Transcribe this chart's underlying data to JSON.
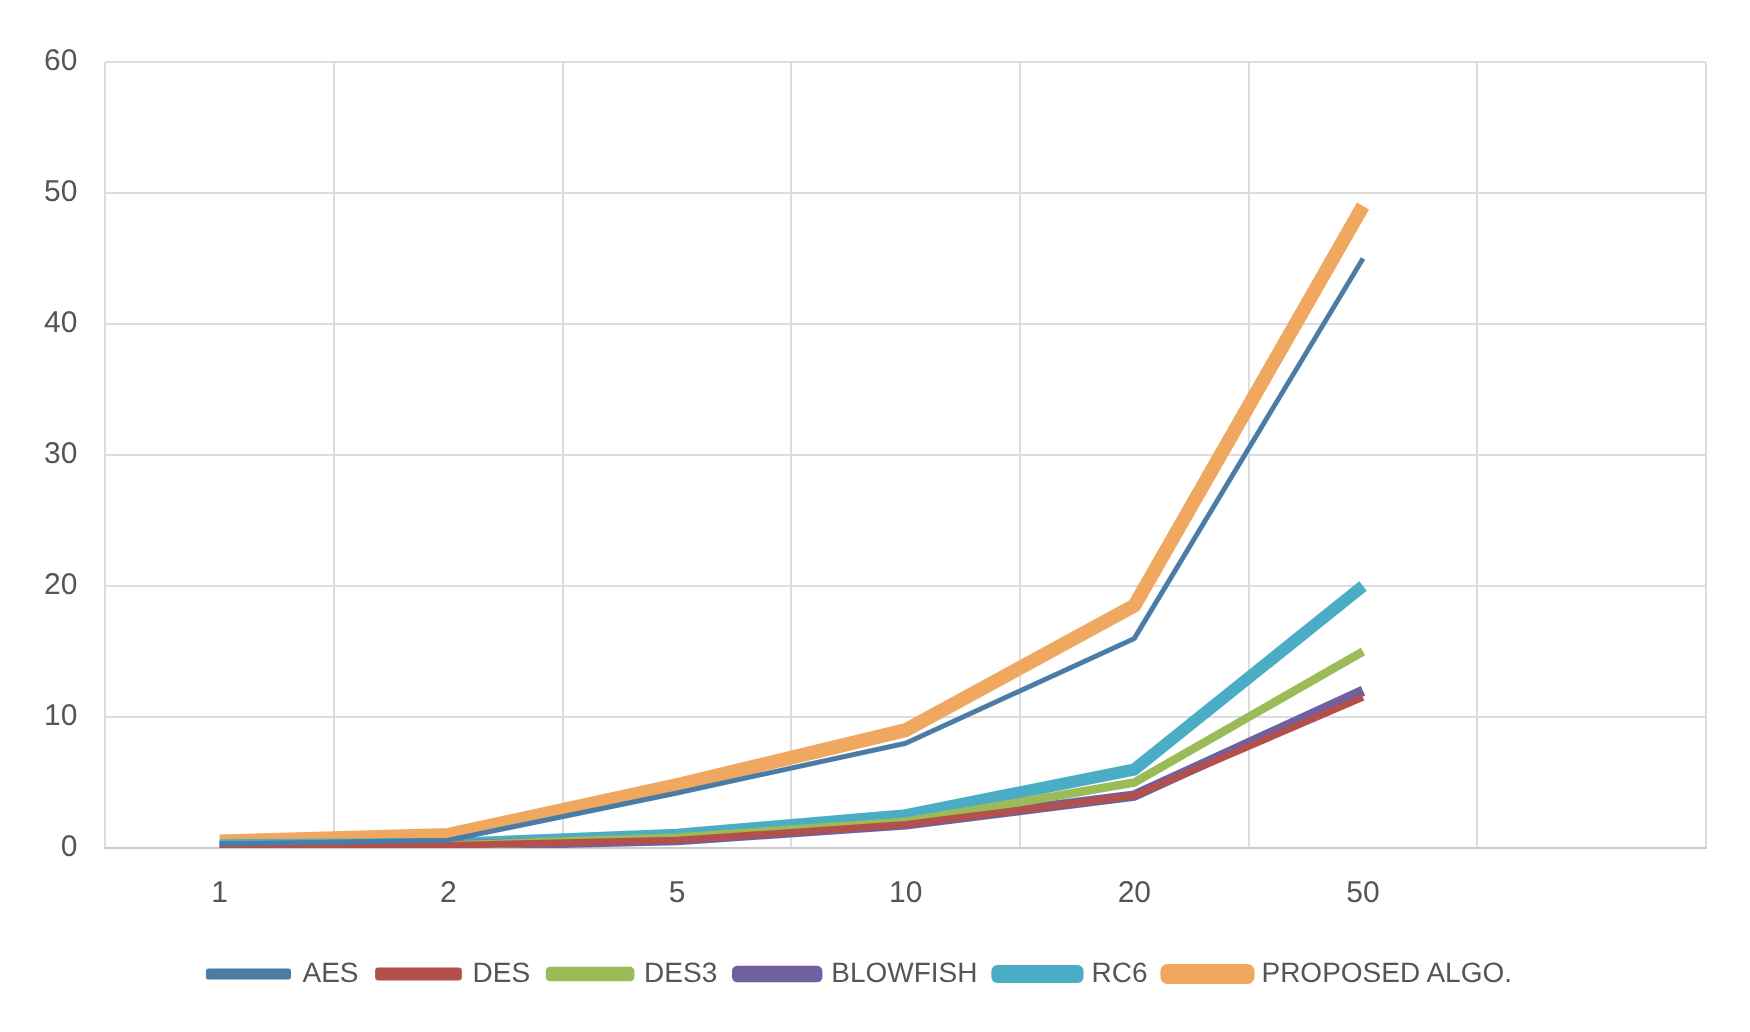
{
  "chart_data": {
    "type": "line",
    "categories": [
      "1",
      "2",
      "5",
      "10",
      "20",
      "50",
      null
    ],
    "series": [
      {
        "name": "AES",
        "color": "#4a7ca6",
        "values": [
          0.3,
          0.6,
          4.2,
          8,
          16,
          45,
          null
        ]
      },
      {
        "name": "DES",
        "color": "#b4504b",
        "values": [
          0.1,
          0.2,
          0.6,
          1.8,
          4,
          11.5,
          null
        ]
      },
      {
        "name": "DES3",
        "color": "#9bbb59",
        "values": [
          0.1,
          0.2,
          0.8,
          2,
          5,
          15,
          null
        ]
      },
      {
        "name": "BLOWFISH",
        "color": "#7060a0",
        "values": [
          0.1,
          0.2,
          0.6,
          1.8,
          4,
          12,
          null
        ]
      },
      {
        "name": "RC6",
        "color": "#4bacc6",
        "values": [
          0.2,
          0.3,
          1,
          2.5,
          6,
          20,
          null
        ]
      },
      {
        "name": "PROPOSED ALGO.",
        "color": "#f0a860",
        "values": [
          0.5,
          1,
          4.8,
          9,
          18.5,
          49,
          null
        ]
      }
    ],
    "ylim": [
      0,
      60
    ],
    "yticks": [
      0,
      10,
      20,
      30,
      40,
      50,
      60
    ],
    "grid": true,
    "legend": "bottom",
    "marker": "none",
    "line_style": "solid"
  }
}
